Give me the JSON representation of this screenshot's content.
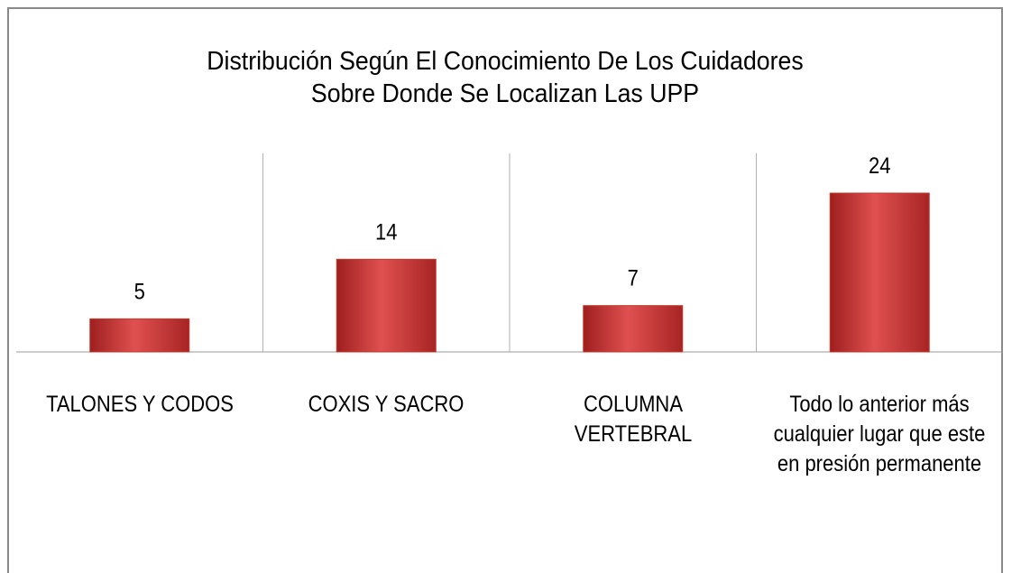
{
  "chart_data": {
    "type": "bar",
    "title": "Distribución Según El Conocimiento De Los Cuidadores Sobre Donde Se Localizan Las UPP",
    "categories": [
      "TALONES Y CODOS",
      "COXIS Y SACRO",
      "COLUMNA VERTEBRAL",
      "Todo lo anterior más cualquier lugar que este en presión permanente"
    ],
    "values": [
      5,
      14,
      7,
      24
    ],
    "color": "#c0392b",
    "ylim": [
      0,
      30
    ]
  }
}
